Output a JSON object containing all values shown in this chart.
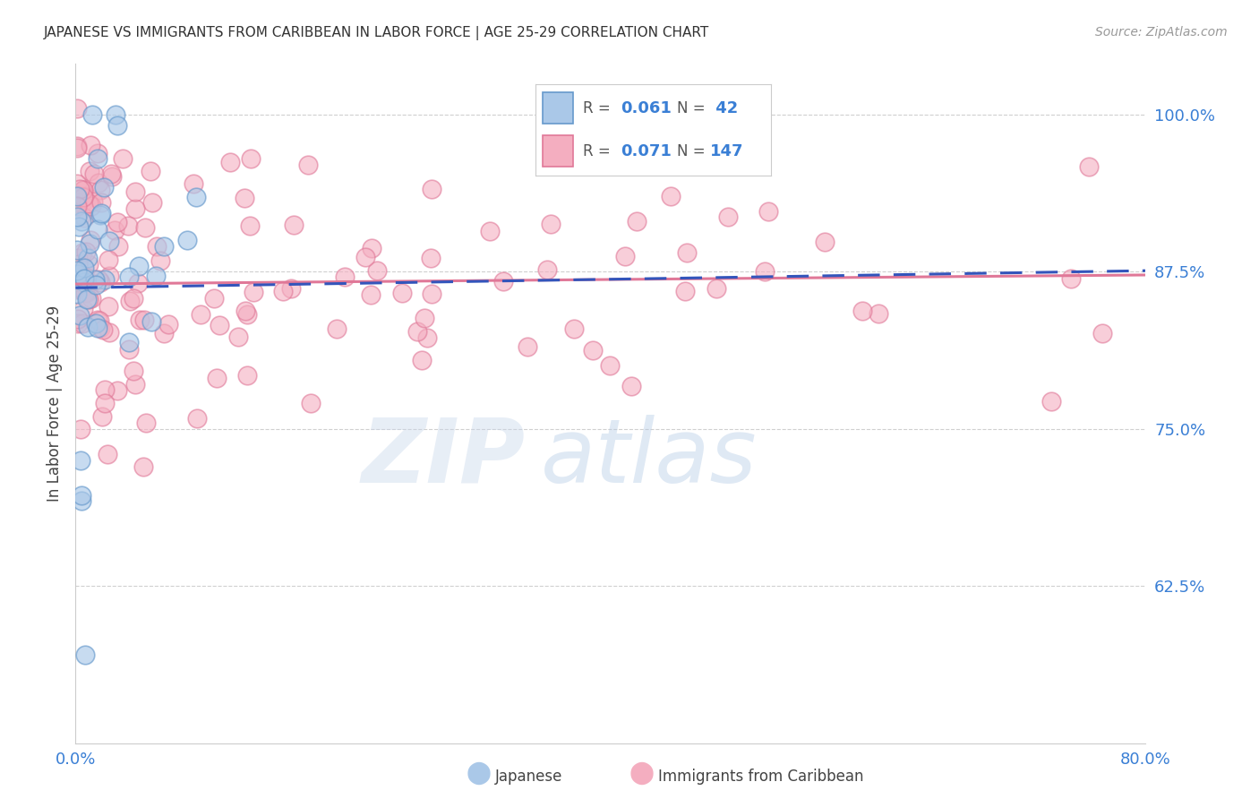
{
  "title": "JAPANESE VS IMMIGRANTS FROM CARIBBEAN IN LABOR FORCE | AGE 25-29 CORRELATION CHART",
  "source": "Source: ZipAtlas.com",
  "ylabel": "In Labor Force | Age 25-29",
  "xlim": [
    0.0,
    0.8
  ],
  "ylim": [
    0.5,
    1.04
  ],
  "ytick_values": [
    1.0,
    0.875,
    0.75,
    0.625
  ],
  "ytick_labels": [
    "100.0%",
    "87.5%",
    "75.0%",
    "62.5%"
  ],
  "xtick_values": [
    0.0,
    0.8
  ],
  "xtick_labels": [
    "0.0%",
    "80.0%"
  ],
  "background_color": "#ffffff",
  "grid_color": "#d0d0d0",
  "title_color": "#333333",
  "blue_color": "#3a7fd5",
  "japanese_face": "#aac8e8",
  "japanese_edge": "#6699cc",
  "japanese_trend": "#3355bb",
  "caribbean_face": "#f4aec0",
  "caribbean_edge": "#e07898",
  "caribbean_trend": "#e07898",
  "R_japanese": 0.061,
  "N_japanese": 42,
  "R_caribbean": 0.071,
  "N_caribbean": 147,
  "legend_label_japanese": "Japanese",
  "legend_label_caribbean": "Immigrants from Caribbean"
}
